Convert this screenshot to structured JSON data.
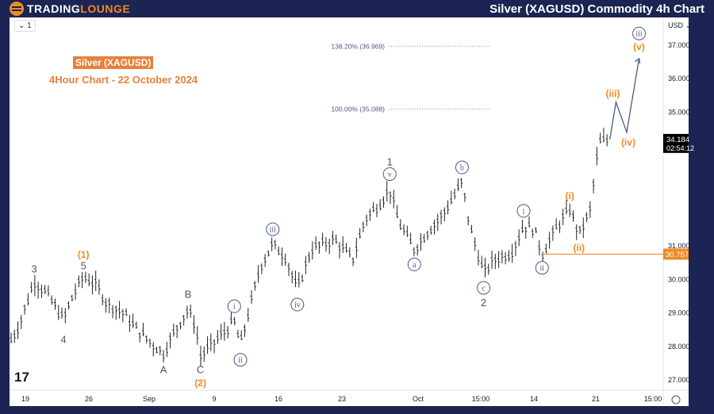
{
  "header": {
    "logo_text_1": "TRADING",
    "logo_text_2": "LOUNGE",
    "title": "Silver (XAGUSD) Commodity 4h Chart"
  },
  "toolbar": {
    "interval": "1"
  },
  "annotations": {
    "label": "Silver (XAGUSD)",
    "subtitle": "4Hour Chart - 22 October 2024"
  },
  "colors": {
    "orange": "#f08a24",
    "wave_blue": "#4a5a80",
    "frame": "#1b2452"
  },
  "chart_data": {
    "type": "ohlc-bar",
    "currency": "USD",
    "y_ticks": [
      "27.000",
      "28.000",
      "29.000",
      "30.000",
      "31.000",
      "35.000",
      "36.000",
      "37.000"
    ],
    "ylim": [
      26.6,
      37.5
    ],
    "x_ticks": [
      "19",
      "26",
      "Sep",
      "9",
      "16",
      "23",
      "Oct",
      "15:00",
      "14",
      "21",
      "15:00"
    ],
    "last_price": "34.184",
    "countdown": "02:54:12",
    "level_line": {
      "value": 30.757,
      "label": "30.757"
    },
    "fib_levels": [
      {
        "label": "138.20% (36.969)",
        "value": 36.969
      },
      {
        "label": "100.00% (35.088)",
        "value": 35.088
      }
    ],
    "price_path": [
      [
        0,
        28.2
      ],
      [
        0.5,
        28.6
      ],
      [
        1.5,
        29.95
      ],
      [
        2.3,
        29.6
      ],
      [
        3.4,
        28.8
      ],
      [
        4,
        29.5
      ],
      [
        4.7,
        30.1
      ],
      [
        5.6,
        29.8
      ],
      [
        6.2,
        29.3
      ],
      [
        7.3,
        29
      ],
      [
        8,
        28.6
      ],
      [
        9.1,
        28.1
      ],
      [
        9.9,
        27.8
      ],
      [
        10.8,
        28.6
      ],
      [
        11.5,
        29.1
      ],
      [
        12,
        28.6
      ],
      [
        12.3,
        27.7
      ],
      [
        14.5,
        28.75
      ],
      [
        14.9,
        28.05
      ],
      [
        16.2,
        30.4
      ],
      [
        17,
        31.05
      ],
      [
        17.8,
        30.7
      ],
      [
        18.6,
        29.7
      ],
      [
        19.5,
        30.9
      ],
      [
        21,
        31.2
      ],
      [
        22.2,
        30.6
      ],
      [
        23,
        31.8
      ],
      [
        24,
        32.3
      ],
      [
        24.6,
        32.7
      ],
      [
        25.2,
        31.7
      ],
      [
        26.2,
        30.9
      ],
      [
        27,
        31.4
      ],
      [
        28,
        31.9
      ],
      [
        29.3,
        32.9
      ],
      [
        29.8,
        31.6
      ],
      [
        30.7,
        30.2
      ],
      [
        31.4,
        30.6
      ],
      [
        32.5,
        30.8
      ],
      [
        33.3,
        31.6
      ],
      [
        34,
        31.5
      ],
      [
        34.5,
        30.75
      ],
      [
        35.5,
        31.6
      ],
      [
        36.3,
        32.1
      ],
      [
        36.9,
        31.35
      ],
      [
        37.6,
        32
      ],
      [
        38.2,
        34.1
      ],
      [
        38.9,
        34.18
      ]
    ],
    "projection": [
      [
        38.9,
        34.18
      ],
      [
        39.3,
        35.3
      ],
      [
        40,
        34.4
      ],
      [
        40.8,
        36.6
      ]
    ],
    "wave_labels": [
      {
        "text": "3",
        "style": "plain",
        "price": 30.3,
        "t": 1.5
      },
      {
        "text": "4",
        "style": "plain",
        "price": 28.2,
        "t": 3.4
      },
      {
        "text": "(1)",
        "style": "orange",
        "price": 30.75,
        "t": 4.7
      },
      {
        "text": "5",
        "style": "plain",
        "price": 30.4,
        "t": 4.7
      },
      {
        "text": "A",
        "style": "plain",
        "price": 27.3,
        "t": 9.9
      },
      {
        "text": "B",
        "style": "plain",
        "price": 29.55,
        "t": 11.5
      },
      {
        "text": "C",
        "style": "plain",
        "price": 27.3,
        "t": 12.3
      },
      {
        "text": "(2)",
        "style": "orange",
        "price": 26.9,
        "t": 12.3
      },
      {
        "text": "i",
        "style": "circle",
        "price": 29.2,
        "t": 14.5
      },
      {
        "text": "ii",
        "style": "circle",
        "price": 27.6,
        "t": 14.9
      },
      {
        "text": "iii",
        "style": "circle",
        "price": 31.5,
        "t": 17
      },
      {
        "text": "iv",
        "style": "circle",
        "price": 29.25,
        "t": 18.6
      },
      {
        "text": "1",
        "style": "plain",
        "price": 33.5,
        "t": 24.6
      },
      {
        "text": "v",
        "style": "circle",
        "price": 33.15,
        "t": 24.6
      },
      {
        "text": "a",
        "style": "circle",
        "price": 30.45,
        "t": 26.2
      },
      {
        "text": "b",
        "style": "circle",
        "price": 33.35,
        "t": 29.3
      },
      {
        "text": "c",
        "style": "circle",
        "price": 29.75,
        "t": 30.7
      },
      {
        "text": "2",
        "style": "plain",
        "price": 29.3,
        "t": 30.7
      },
      {
        "text": "i",
        "style": "circle",
        "price": 32.05,
        "t": 33.3
      },
      {
        "text": "ii",
        "style": "circle",
        "price": 30.35,
        "t": 34.5
      },
      {
        "text": "(i)",
        "style": "orange",
        "price": 32.5,
        "t": 36.3
      },
      {
        "text": "(ii)",
        "style": "orange",
        "price": 30.95,
        "t": 36.9
      },
      {
        "text": "(iii)",
        "style": "orange",
        "price": 35.55,
        "t": 39.1
      },
      {
        "text": "(iv)",
        "style": "orange",
        "price": 34.1,
        "t": 40.1
      },
      {
        "text": "(v)",
        "style": "orange",
        "price": 36.95,
        "t": 40.8
      },
      {
        "text": "iii",
        "style": "circle",
        "price": 37.35,
        "t": 40.8
      }
    ]
  }
}
